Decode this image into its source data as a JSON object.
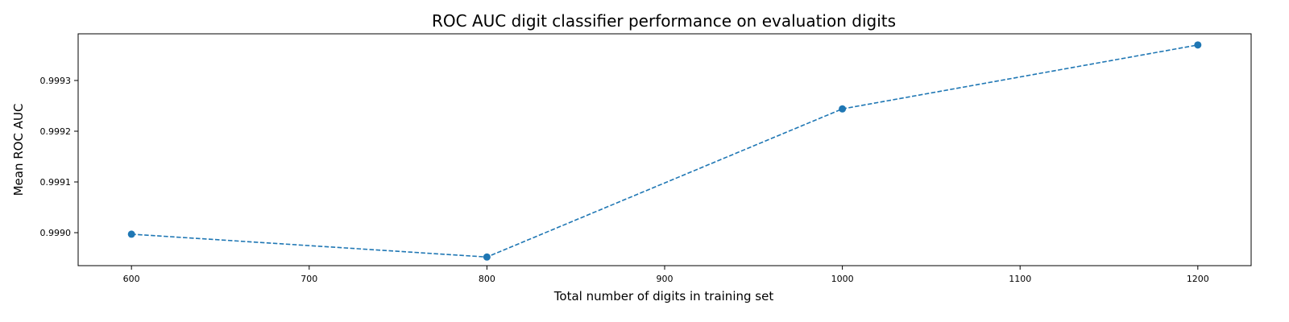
{
  "chart_data": {
    "type": "line",
    "title": "ROC AUC digit classifier performance on evaluation digits",
    "xlabel": "Total number of digits in training set",
    "ylabel": "Mean ROC AUC",
    "x": [
      600,
      800,
      1000,
      1200
    ],
    "xticks": [
      600,
      700,
      800,
      900,
      1000,
      1100,
      1200
    ],
    "xtick_labels": [
      "600",
      "700",
      "800",
      "900",
      "1000",
      "1100",
      "1200"
    ],
    "yticks": [
      0.999,
      0.9991,
      0.9992,
      0.9993
    ],
    "ytick_labels": [
      "0.9990",
      "0.9991",
      "0.9992",
      "0.9993"
    ],
    "xlim": [
      570,
      1230
    ],
    "ylim": [
      0.998935,
      0.999392
    ],
    "grid": false,
    "series": [
      {
        "values": [
          0.998997,
          0.998952,
          0.999244,
          0.99937
        ],
        "color": "#1f77b4",
        "linestyle": "dashed",
        "marker": "circle"
      }
    ]
  }
}
